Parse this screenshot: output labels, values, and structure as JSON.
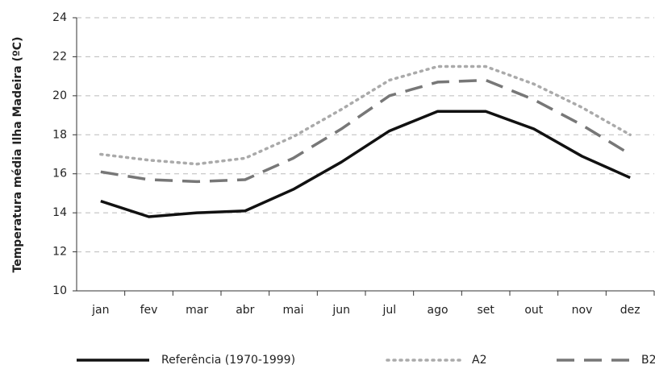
{
  "chart_data": {
    "type": "line",
    "y_label": "Temperatura média Ilha Madeira (ºC)",
    "categories": [
      "jan",
      "fev",
      "mar",
      "abr",
      "mai",
      "jun",
      "jul",
      "ago",
      "set",
      "out",
      "nov",
      "dez"
    ],
    "series": [
      {
        "name": "Referência (1970-1999)",
        "color": "#111111",
        "dash": "solid",
        "values": [
          14.6,
          13.8,
          14.0,
          14.1,
          15.2,
          16.6,
          18.2,
          19.2,
          19.2,
          18.3,
          16.9,
          15.8
        ]
      },
      {
        "name": "A2",
        "color": "#aaaaaa",
        "dash": "dot",
        "values": [
          17.0,
          16.7,
          16.5,
          16.8,
          17.9,
          19.3,
          20.8,
          21.5,
          21.5,
          20.6,
          19.4,
          18.0
        ]
      },
      {
        "name": "B2",
        "color": "#777777",
        "dash": "dash",
        "values": [
          16.1,
          15.7,
          15.6,
          15.7,
          16.8,
          18.3,
          20.0,
          20.7,
          20.8,
          19.8,
          18.5,
          17.0
        ]
      }
    ],
    "ylim": [
      10,
      24
    ],
    "yticks": [
      10,
      12,
      14,
      16,
      18,
      20,
      22,
      24
    ],
    "grid": true,
    "legend": "bottom"
  }
}
